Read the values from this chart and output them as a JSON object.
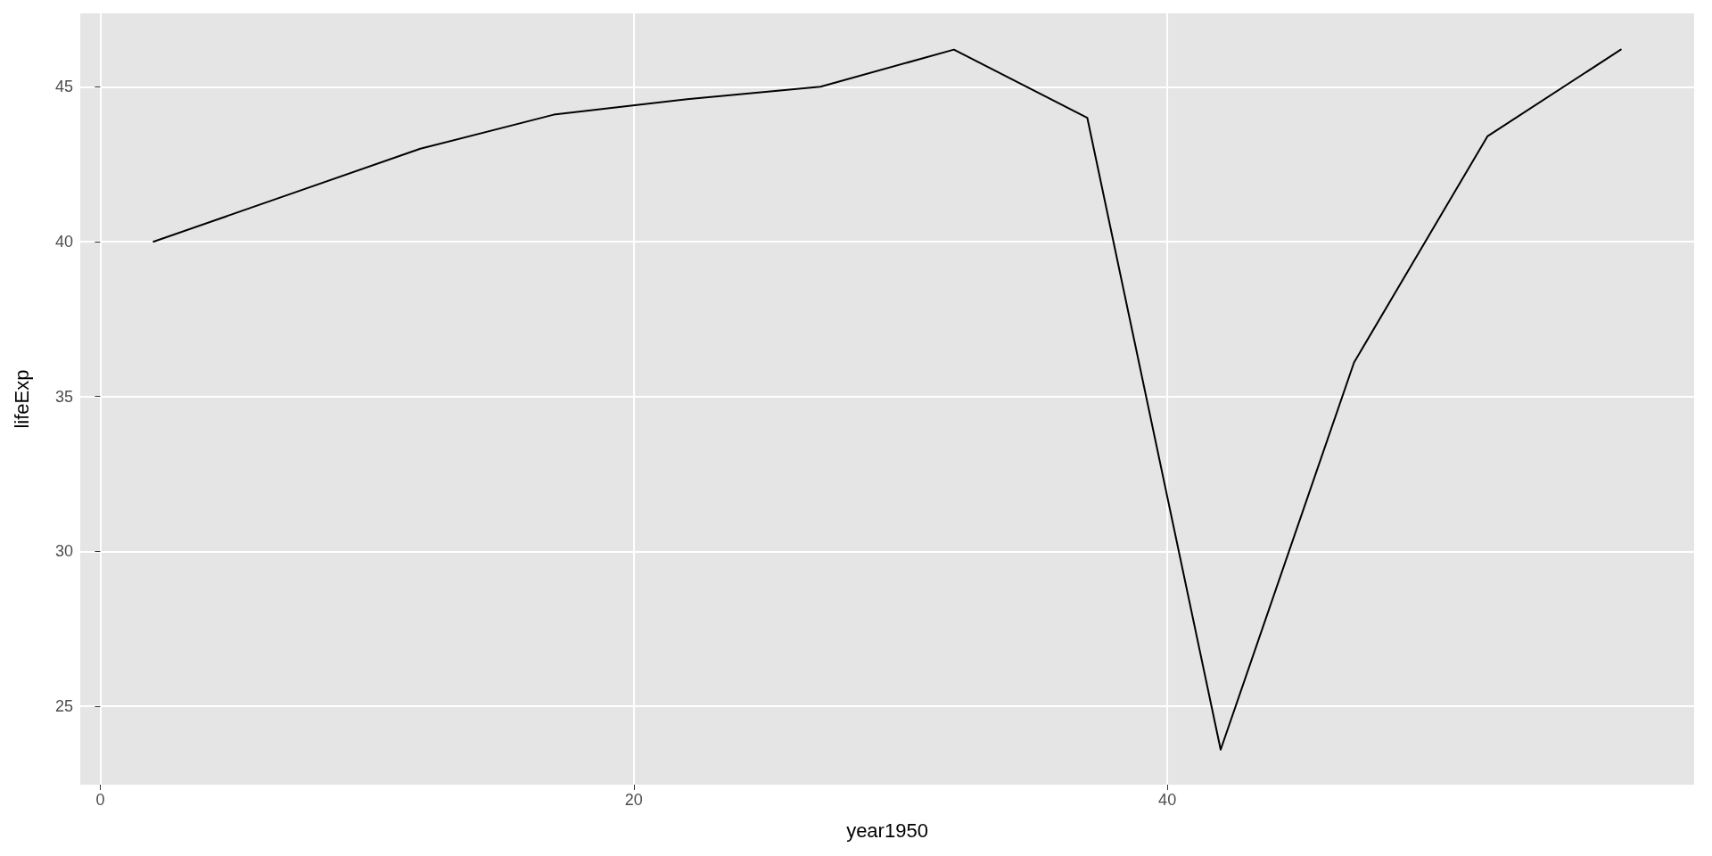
{
  "chart_data": {
    "type": "line",
    "xlabel": "year1950",
    "ylabel": "lifeExp",
    "x": [
      2,
      7,
      12,
      17,
      22,
      27,
      32,
      37,
      42,
      47,
      52,
      57
    ],
    "series": [
      {
        "color": "#000000",
        "values": [
          40.0,
          41.5,
          43.0,
          44.1,
          44.6,
          45.0,
          46.2,
          44.0,
          23.6,
          36.1,
          43.4,
          46.2
        ]
      }
    ],
    "xlim": [
      -0.75,
      59.75
    ],
    "xticks": [
      0,
      20,
      40
    ],
    "ylim": [
      22.47,
      47.37
    ],
    "yticks": [
      25,
      30,
      35,
      40,
      45
    ],
    "grid": true,
    "marker": "none",
    "line_style": "solid"
  }
}
